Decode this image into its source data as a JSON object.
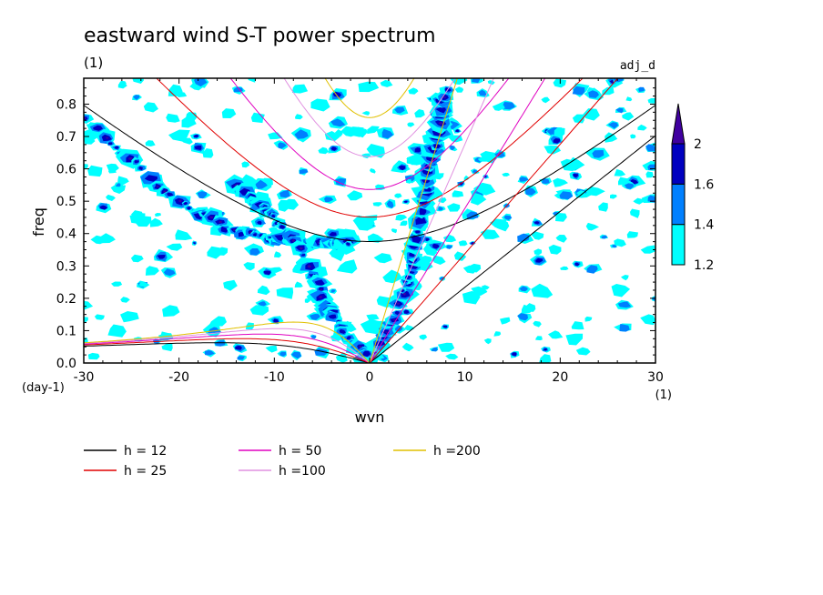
{
  "chart_data": {
    "type": "heatmap",
    "title": "eastward wind S-T power spectrum",
    "subtitle_left": "(1)",
    "subtitle_right": "adj_d",
    "xlabel": "wvn",
    "ylabel": "freq",
    "x_unit": "(1)",
    "y_unit": "(day-1)",
    "xlim": [
      -30,
      30
    ],
    "ylim": [
      0,
      0.88
    ],
    "x_ticks": [
      "-30",
      "-20",
      "-10",
      "0",
      "10",
      "20",
      "30"
    ],
    "x_tick_values": [
      -30,
      -20,
      -10,
      0,
      10,
      20,
      30
    ],
    "y_ticks": [
      "0.0",
      "0.1",
      "0.2",
      "0.3",
      "0.4",
      "0.5",
      "0.6",
      "0.7",
      "0.8"
    ],
    "y_tick_values": [
      0,
      0.1,
      0.2,
      0.3,
      0.4,
      0.5,
      0.6,
      0.7,
      0.8
    ],
    "colorbar": {
      "levels": [
        1.2,
        1.4,
        1.6,
        2
      ],
      "labels": [
        "1.2",
        "1.4",
        "1.6",
        "2"
      ],
      "colors": [
        "#00ffff",
        "#0080ff",
        "#0000c0",
        "#4000a0"
      ]
    },
    "dispersion_curves": [
      {
        "label": "h = 12",
        "h": 12,
        "color": "#000000"
      },
      {
        "label": "h = 25",
        "h": 25,
        "color": "#e00000"
      },
      {
        "label": "h = 50",
        "h": 50,
        "color": "#e000c0"
      },
      {
        "label": "h =100",
        "h": 100,
        "color": "#e090e0"
      },
      {
        "label": "h =200",
        "h": 200,
        "color": "#e0c000"
      }
    ],
    "power_ridges": [
      {
        "x": [
          0,
          2,
          4,
          5,
          6,
          7,
          8
        ],
        "y": [
          0.02,
          0.1,
          0.25,
          0.4,
          0.55,
          0.7,
          0.85
        ]
      },
      {
        "x": [
          -30,
          -25,
          -20,
          -15,
          -10,
          -5,
          -2
        ],
        "y": [
          0.75,
          0.63,
          0.5,
          0.42,
          0.38,
          0.37,
          0.37
        ]
      },
      {
        "x": [
          -14,
          -10,
          -7,
          -5,
          -3,
          0
        ],
        "y": [
          0.55,
          0.45,
          0.35,
          0.2,
          0.1,
          0.02
        ]
      }
    ]
  }
}
